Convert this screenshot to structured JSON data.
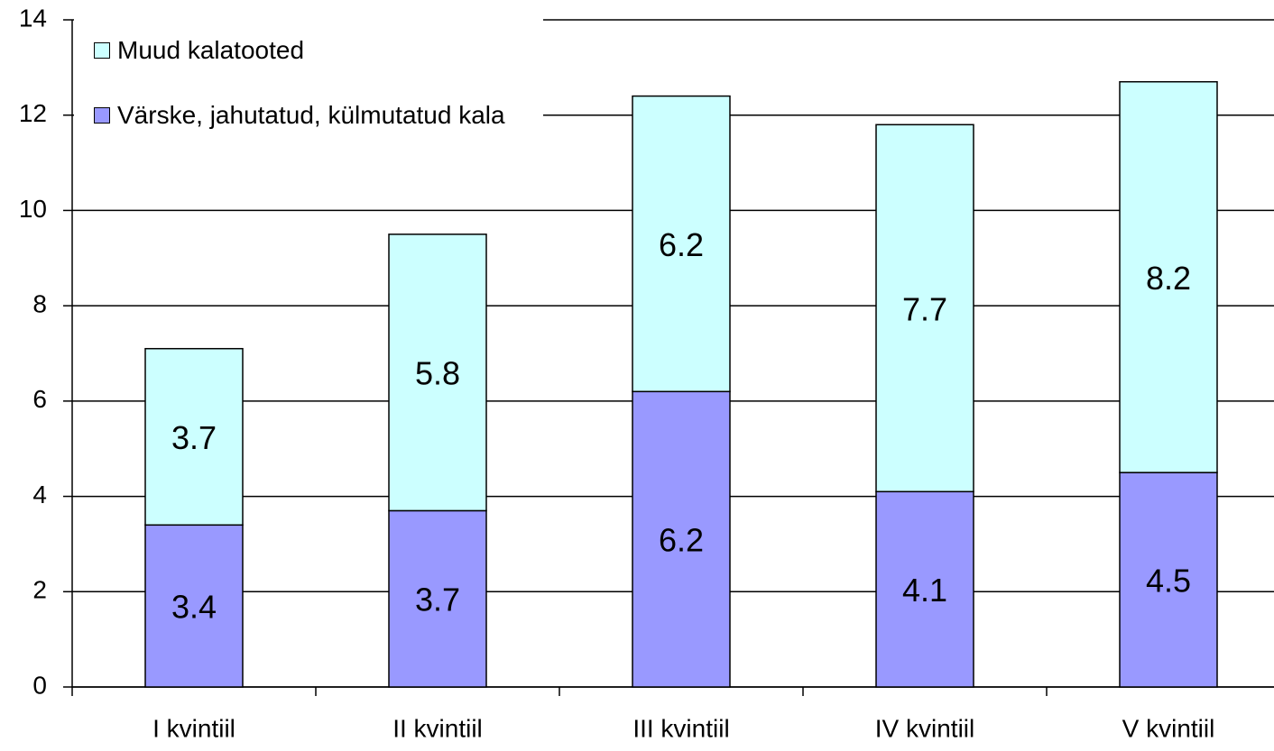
{
  "chart_data": {
    "type": "stacked_bar",
    "categories": [
      "I kvintiil",
      "II kvintiil",
      "III kvintiil",
      "IV kvintiil",
      "V kvintiil"
    ],
    "series": [
      {
        "name": "Värske, jahutatud, külmutatud kala",
        "color": "#9999ff",
        "values": [
          3.4,
          3.7,
          6.2,
          4.1,
          4.5
        ]
      },
      {
        "name": "Muud kalatooted",
        "color": "#ccffff",
        "values": [
          3.7,
          5.8,
          6.2,
          7.7,
          8.2
        ]
      }
    ],
    "ylim": [
      0,
      14
    ],
    "yticks": [
      0,
      2,
      4,
      6,
      8,
      10,
      12,
      14
    ],
    "grid": true,
    "legend": "upper left"
  }
}
